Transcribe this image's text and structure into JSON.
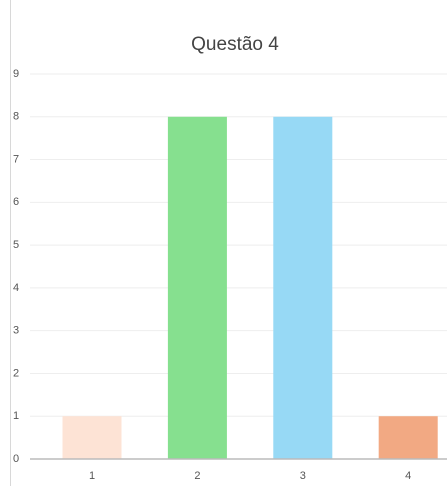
{
  "chart_data": {
    "type": "bar",
    "title": "Questão 4",
    "categories": [
      "1",
      "2",
      "3",
      "4"
    ],
    "values": [
      1,
      8,
      8,
      1
    ],
    "colors": [
      "#fde3d5",
      "#86e08f",
      "#97d9f5",
      "#f2a983"
    ],
    "ylim": [
      0,
      9
    ],
    "yticks": [
      0,
      1,
      2,
      3,
      4,
      5,
      6,
      7,
      8,
      9
    ],
    "grid": true
  }
}
